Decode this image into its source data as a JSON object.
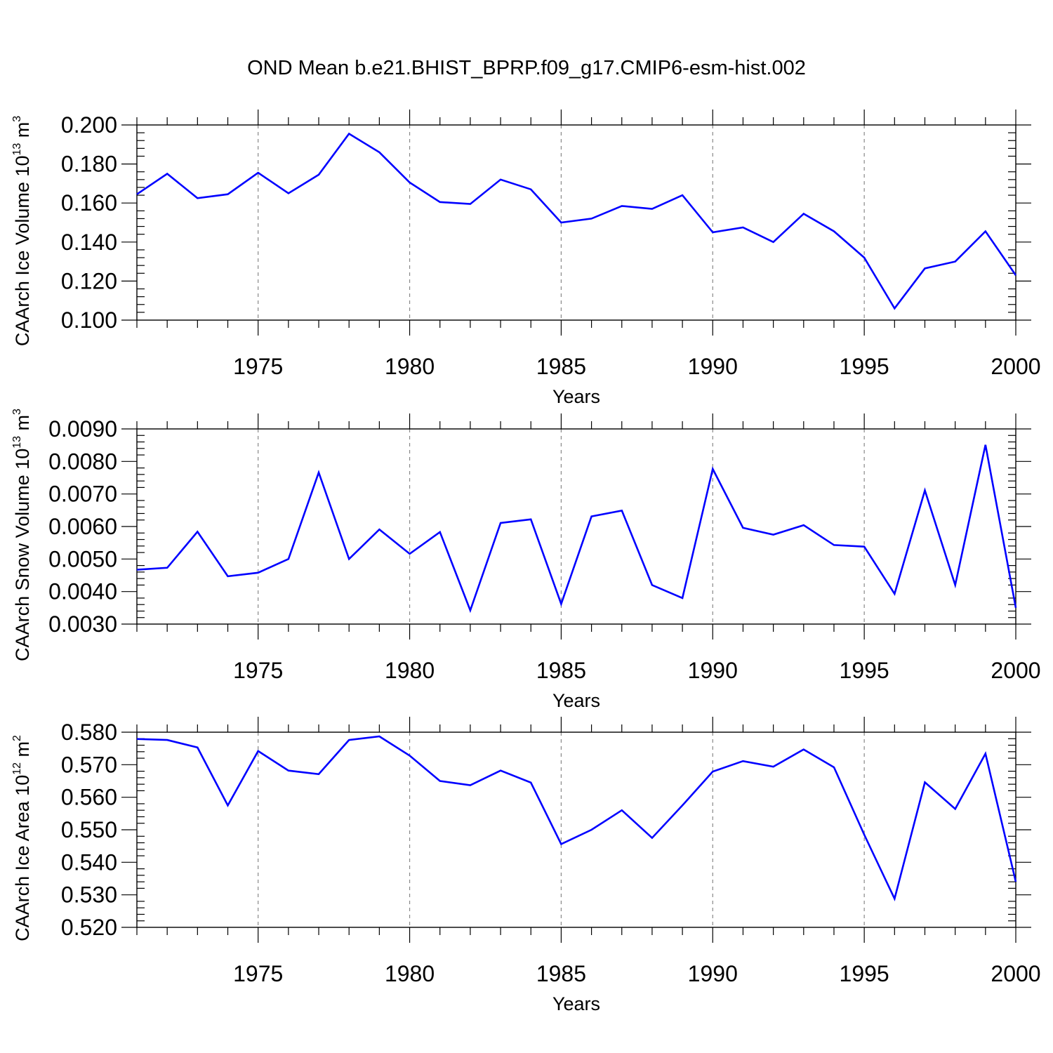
{
  "title": "OND Mean b.e21.BHIST_BPRP.f09_g17.CMIP6-esm-hist.002",
  "colors": {
    "line": "#0000ff",
    "axis": "#000000",
    "grid": "#888888"
  },
  "chart_data": [
    {
      "type": "line",
      "ylabel": {
        "main": "CAArch Ice Volume 10",
        "exp": "13",
        "unit": " m",
        "unit_exp": "3"
      },
      "xlabel": "Years",
      "xlim": [
        1971,
        2000
      ],
      "xticks": [
        1975,
        1980,
        1985,
        1990,
        1995,
        2000
      ],
      "xtick_labels": [
        "1975",
        "1980",
        "1985",
        "1990",
        "1995",
        "2000"
      ],
      "ylim": [
        0.1,
        0.2
      ],
      "yticks": [
        0.1,
        0.12,
        0.14,
        0.16,
        0.18,
        0.2
      ],
      "ytick_labels": [
        "0.100",
        "0.120",
        "0.140",
        "0.160",
        "0.180",
        "0.200"
      ],
      "grid": "vertical dashed at major x ticks",
      "series": [
        {
          "x": [
            1971,
            1972,
            1973,
            1974,
            1975,
            1976,
            1977,
            1978,
            1979,
            1980,
            1981,
            1982,
            1983,
            1984,
            1985,
            1986,
            1987,
            1988,
            1989,
            1990,
            1991,
            1992,
            1993,
            1994,
            1995,
            1996,
            1997,
            1998,
            1999,
            2000
          ],
          "values": [
            0.1645,
            0.175,
            0.1625,
            0.1645,
            0.1755,
            0.165,
            0.1745,
            0.1955,
            0.186,
            0.1705,
            0.1605,
            0.1595,
            0.172,
            0.167,
            0.15,
            0.152,
            0.1585,
            0.157,
            0.164,
            0.145,
            0.1475,
            0.14,
            0.1545,
            0.1455,
            0.132,
            0.106,
            0.1265,
            0.13,
            0.1455,
            0.123
          ]
        }
      ]
    },
    {
      "type": "line",
      "ylabel": {
        "main": "CAArch Snow Volume 10",
        "exp": "13",
        "unit": " m",
        "unit_exp": "3"
      },
      "xlabel": "Years",
      "xlim": [
        1971,
        2000
      ],
      "xticks": [
        1975,
        1980,
        1985,
        1990,
        1995,
        2000
      ],
      "xtick_labels": [
        "1975",
        "1980",
        "1985",
        "1990",
        "1995",
        "2000"
      ],
      "ylim": [
        0.003,
        0.009
      ],
      "yticks": [
        0.003,
        0.004,
        0.005,
        0.006,
        0.007,
        0.008,
        0.009
      ],
      "ytick_labels": [
        "0.0030",
        "0.0040",
        "0.0050",
        "0.0060",
        "0.0070",
        "0.0080",
        "0.0090"
      ],
      "grid": "vertical dashed at major x ticks",
      "series": [
        {
          "x": [
            1971,
            1972,
            1973,
            1974,
            1975,
            1976,
            1977,
            1978,
            1979,
            1980,
            1981,
            1982,
            1983,
            1984,
            1985,
            1986,
            1987,
            1988,
            1989,
            1990,
            1991,
            1992,
            1993,
            1994,
            1995,
            1996,
            1997,
            1998,
            1999,
            2000
          ],
          "values": [
            0.00467,
            0.00473,
            0.00584,
            0.00447,
            0.00458,
            0.005,
            0.00766,
            0.005,
            0.00591,
            0.00516,
            0.00583,
            0.00342,
            0.00611,
            0.00622,
            0.00362,
            0.00631,
            0.00649,
            0.0042,
            0.0038,
            0.00777,
            0.00596,
            0.00575,
            0.00604,
            0.00543,
            0.00538,
            0.00393,
            0.00711,
            0.0042,
            0.00851,
            0.0035
          ]
        }
      ]
    },
    {
      "type": "line",
      "ylabel": {
        "main": "CAArch Ice Area 10",
        "exp": "12",
        "unit": " m",
        "unit_exp": "2"
      },
      "xlabel": "Years",
      "xlim": [
        1971,
        2000
      ],
      "xticks": [
        1975,
        1980,
        1985,
        1990,
        1995,
        2000
      ],
      "xtick_labels": [
        "1975",
        "1980",
        "1985",
        "1990",
        "1995",
        "2000"
      ],
      "ylim": [
        0.52,
        0.58
      ],
      "yticks": [
        0.52,
        0.53,
        0.54,
        0.55,
        0.56,
        0.57,
        0.58
      ],
      "ytick_labels": [
        "0.520",
        "0.530",
        "0.540",
        "0.550",
        "0.560",
        "0.570",
        "0.580"
      ],
      "grid": "vertical dashed at major x ticks",
      "series": [
        {
          "x": [
            1971,
            1972,
            1973,
            1974,
            1975,
            1976,
            1977,
            1978,
            1979,
            1980,
            1981,
            1982,
            1983,
            1984,
            1985,
            1986,
            1987,
            1988,
            1989,
            1990,
            1991,
            1992,
            1993,
            1994,
            1995,
            1996,
            1997,
            1998,
            1999,
            2000
          ],
          "values": [
            0.5779,
            0.5776,
            0.5753,
            0.5575,
            0.5742,
            0.5682,
            0.5671,
            0.5776,
            0.5787,
            0.5728,
            0.565,
            0.5637,
            0.5682,
            0.5645,
            0.5456,
            0.55,
            0.556,
            0.5475,
            0.5575,
            0.5679,
            0.5711,
            0.5694,
            0.5747,
            0.5692,
            0.5485,
            0.5288,
            0.5646,
            0.5564,
            0.5734,
            0.534
          ]
        }
      ]
    }
  ]
}
